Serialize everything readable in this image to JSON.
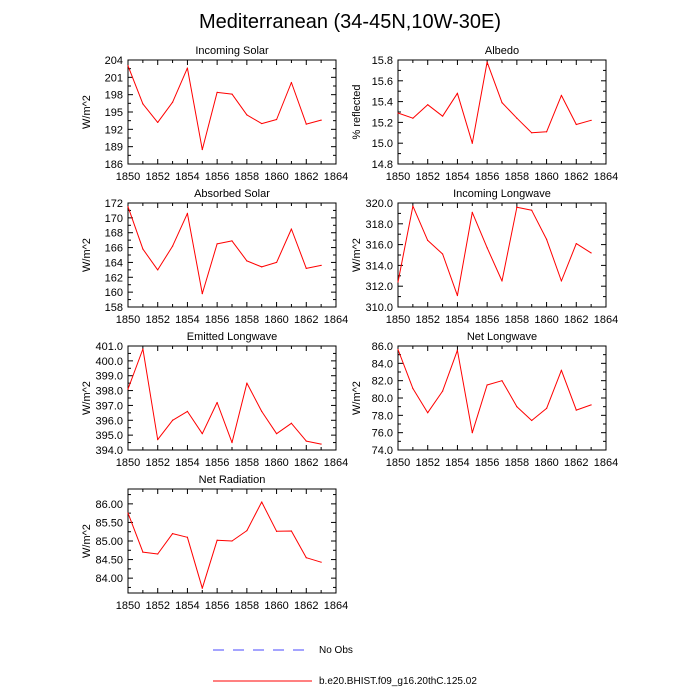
{
  "title": "Mediterranean (34-45N,10W-30E)",
  "colors": {
    "model": "#ff0000",
    "obs": "#4a4aff",
    "axis": "#000000"
  },
  "legend": {
    "obs_label": "No Obs",
    "model_label": "b.e20.BHIST.f09_g16.20thC.125.02"
  },
  "chart_data": [
    {
      "type": "line",
      "title": "Incoming Solar",
      "xlabel": "",
      "ylabel": "W/m^2",
      "xlim": [
        1850,
        1864
      ],
      "ylim": [
        186,
        204
      ],
      "xticks": [
        1850,
        1852,
        1854,
        1856,
        1858,
        1860,
        1862,
        1864
      ],
      "yticks": [
        "186",
        "189",
        "192",
        "195",
        "198",
        "201",
        "204"
      ],
      "x": [
        1850,
        1851,
        1852,
        1853,
        1854,
        1855,
        1856,
        1857,
        1858,
        1859,
        1860,
        1861,
        1862,
        1863
      ],
      "series": [
        {
          "name": "b.e20.BHIST.f09_g16.20thC.125.02",
          "values": [
            203.0,
            196.4,
            193.2,
            196.7,
            202.6,
            188.5,
            198.4,
            198.1,
            194.5,
            193.0,
            193.7,
            200.1,
            192.9,
            193.6
          ]
        }
      ]
    },
    {
      "type": "line",
      "title": "Albedo",
      "xlabel": "",
      "ylabel": "% reflected",
      "xlim": [
        1850,
        1864
      ],
      "ylim": [
        14.8,
        15.8
      ],
      "xticks": [
        1850,
        1852,
        1854,
        1856,
        1858,
        1860,
        1862,
        1864
      ],
      "yticks": [
        "14.8",
        "15.0",
        "15.2",
        "15.4",
        "15.6",
        "15.8"
      ],
      "x": [
        1850,
        1851,
        1852,
        1853,
        1854,
        1855,
        1856,
        1857,
        1858,
        1859,
        1860,
        1861,
        1862,
        1863
      ],
      "series": [
        {
          "name": "b.e20.BHIST.f09_g16.20thC.125.02",
          "values": [
            15.29,
            15.24,
            15.37,
            15.26,
            15.48,
            15.0,
            15.78,
            15.39,
            15.24,
            15.1,
            15.11,
            15.46,
            15.18,
            15.22
          ]
        }
      ]
    },
    {
      "type": "line",
      "title": "Absorbed Solar",
      "xlabel": "",
      "ylabel": "W/m^2",
      "xlim": [
        1850,
        1864
      ],
      "ylim": [
        158,
        172
      ],
      "xticks": [
        1850,
        1852,
        1854,
        1856,
        1858,
        1860,
        1862,
        1864
      ],
      "yticks": [
        "158",
        "160",
        "162",
        "164",
        "166",
        "168",
        "170",
        "172"
      ],
      "x": [
        1850,
        1851,
        1852,
        1853,
        1854,
        1855,
        1856,
        1857,
        1858,
        1859,
        1860,
        1861,
        1862,
        1863
      ],
      "series": [
        {
          "name": "b.e20.BHIST.f09_g16.20thC.125.02",
          "values": [
            171.5,
            165.8,
            163.0,
            166.2,
            170.6,
            159.8,
            166.5,
            166.9,
            164.2,
            163.4,
            164.0,
            168.5,
            163.2,
            163.6
          ]
        }
      ]
    },
    {
      "type": "line",
      "title": "Incoming Longwave",
      "xlabel": "",
      "ylabel": "W/m^2",
      "xlim": [
        1850,
        1864
      ],
      "ylim": [
        310,
        320
      ],
      "xticks": [
        1850,
        1852,
        1854,
        1856,
        1858,
        1860,
        1862,
        1864
      ],
      "yticks": [
        "310.0",
        "312.0",
        "314.0",
        "316.0",
        "318.0",
        "320.0"
      ],
      "x": [
        1850,
        1851,
        1852,
        1853,
        1854,
        1855,
        1856,
        1857,
        1858,
        1859,
        1860,
        1861,
        1862,
        1863
      ],
      "series": [
        {
          "name": "b.e20.BHIST.f09_g16.20thC.125.02",
          "values": [
            312.4,
            319.7,
            316.4,
            315.1,
            311.1,
            319.1,
            315.7,
            312.5,
            319.6,
            319.3,
            316.5,
            312.5,
            316.1,
            315.2
          ]
        }
      ]
    },
    {
      "type": "line",
      "title": "Emitted Longwave",
      "xlabel": "",
      "ylabel": "W/m^2",
      "xlim": [
        1850,
        1864
      ],
      "ylim": [
        394,
        401
      ],
      "xticks": [
        1850,
        1852,
        1854,
        1856,
        1858,
        1860,
        1862,
        1864
      ],
      "yticks": [
        "394.0",
        "395.0",
        "396.0",
        "397.0",
        "398.0",
        "399.0",
        "400.0",
        "401.0"
      ],
      "x": [
        1850,
        1851,
        1852,
        1853,
        1854,
        1855,
        1856,
        1857,
        1858,
        1859,
        1860,
        1861,
        1862,
        1863
      ],
      "series": [
        {
          "name": "b.e20.BHIST.f09_g16.20thC.125.02",
          "values": [
            398.1,
            400.8,
            394.7,
            396.0,
            396.6,
            395.1,
            397.2,
            394.5,
            398.5,
            396.6,
            395.1,
            395.8,
            394.6,
            394.4
          ]
        }
      ]
    },
    {
      "type": "line",
      "title": "Net Longwave",
      "xlabel": "",
      "ylabel": "W/m^2",
      "xlim": [
        1850,
        1864
      ],
      "ylim": [
        74,
        86
      ],
      "xticks": [
        1850,
        1852,
        1854,
        1856,
        1858,
        1860,
        1862,
        1864
      ],
      "yticks": [
        "74.0",
        "76.0",
        "78.0",
        "80.0",
        "82.0",
        "84.0",
        "86.0"
      ],
      "x": [
        1850,
        1851,
        1852,
        1853,
        1854,
        1855,
        1856,
        1857,
        1858,
        1859,
        1860,
        1861,
        1862,
        1863
      ],
      "series": [
        {
          "name": "b.e20.BHIST.f09_g16.20thC.125.02",
          "values": [
            85.6,
            81.1,
            78.3,
            80.8,
            85.5,
            76.0,
            81.5,
            82.0,
            79.0,
            77.4,
            78.8,
            83.2,
            78.6,
            79.2
          ]
        }
      ]
    },
    {
      "type": "line",
      "title": "Net Radiation",
      "xlabel": "",
      "ylabel": "W/m^2",
      "xlim": [
        1850,
        1864
      ],
      "ylim": [
        83.6,
        86.4
      ],
      "xticks": [
        1850,
        1852,
        1854,
        1856,
        1858,
        1860,
        1862,
        1864
      ],
      "yticks": [
        "84.00",
        "84.50",
        "85.00",
        "85.50",
        "86.00"
      ],
      "x": [
        1850,
        1851,
        1852,
        1853,
        1854,
        1855,
        1856,
        1857,
        1858,
        1859,
        1860,
        1861,
        1862,
        1863
      ],
      "series": [
        {
          "name": "b.e20.BHIST.f09_g16.20thC.125.02",
          "values": [
            85.75,
            84.7,
            84.65,
            85.2,
            85.1,
            83.73,
            85.02,
            85.0,
            85.28,
            86.05,
            85.26,
            85.27,
            84.55,
            84.43
          ]
        }
      ]
    }
  ]
}
